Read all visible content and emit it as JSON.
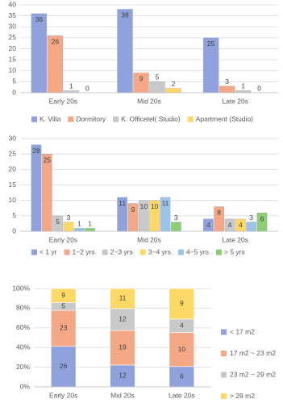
{
  "chart_data": [
    {
      "type": "bar",
      "categories": [
        "Early 20s",
        "Mid 20s",
        "Late 20s"
      ],
      "series": [
        {
          "name": "K. Villa",
          "color": "#8fa2dc",
          "values": [
            36,
            38,
            25
          ]
        },
        {
          "name": "Dormitory",
          "color": "#f4a886",
          "values": [
            26,
            9,
            3
          ]
        },
        {
          "name": "K. Officetel( Studio)",
          "color": "#c9c9c9",
          "values": [
            1,
            5,
            1
          ]
        },
        {
          "name": "Apartment (Studio)",
          "color": "#ffd966",
          "values": [
            0,
            2,
            0
          ]
        }
      ],
      "ylim": [
        0,
        40
      ],
      "yticks": [
        0,
        5,
        10,
        15,
        20,
        25,
        30,
        35,
        40
      ],
      "grid": true,
      "legend": "bottom",
      "data_labels": true
    },
    {
      "type": "bar",
      "categories": [
        "Early 20s",
        "Mid 20s",
        "Late 20s"
      ],
      "series": [
        {
          "name": "< 1 yr",
          "color": "#8fa2dc",
          "values": [
            28,
            11,
            4
          ]
        },
        {
          "name": "1~2 yrs",
          "color": "#f4a886",
          "values": [
            25,
            9,
            8
          ]
        },
        {
          "name": "2~3 yrs",
          "color": "#c9c9c9",
          "values": [
            5,
            10,
            4
          ]
        },
        {
          "name": "3~4 yrs",
          "color": "#ffd966",
          "values": [
            3,
            10,
            4
          ]
        },
        {
          "name": "4~5 yrs",
          "color": "#9dc3e6",
          "values": [
            1,
            11,
            3
          ]
        },
        {
          "name": "> 5 yrs",
          "color": "#8fcf73",
          "values": [
            1,
            3,
            6
          ]
        }
      ],
      "ylim": [
        0,
        30
      ],
      "yticks": [
        0,
        5,
        10,
        15,
        20,
        25,
        30
      ],
      "grid": true,
      "legend": "bottom",
      "data_labels": true
    },
    {
      "type": "bar",
      "stacking": "percent",
      "categories": [
        "Early 20s",
        "Mid 20s",
        "Late 20s"
      ],
      "series": [
        {
          "name": "< 17 m2",
          "color": "#8fa2dc",
          "values": [
            26,
            12,
            6
          ]
        },
        {
          "name": "17 m2 ~ 23 m2",
          "color": "#f4a886",
          "values": [
            23,
            19,
            10
          ]
        },
        {
          "name": "23 m2 ~ 29 m2",
          "color": "#c9c9c9",
          "values": [
            5,
            12,
            4
          ]
        },
        {
          "name": "> 29 m2",
          "color": "#ffd966",
          "values": [
            9,
            11,
            9
          ]
        }
      ],
      "ylim": [
        0,
        100
      ],
      "yticks": [
        {
          "value": 0,
          "label": "0%"
        },
        {
          "value": 20,
          "label": "20%"
        },
        {
          "value": 40,
          "label": "40%"
        },
        {
          "value": 60,
          "label": "60%"
        },
        {
          "value": 80,
          "label": "80%"
        },
        {
          "value": 100,
          "label": "100%"
        }
      ],
      "grid": true,
      "legend": "right",
      "data_labels": true
    }
  ]
}
